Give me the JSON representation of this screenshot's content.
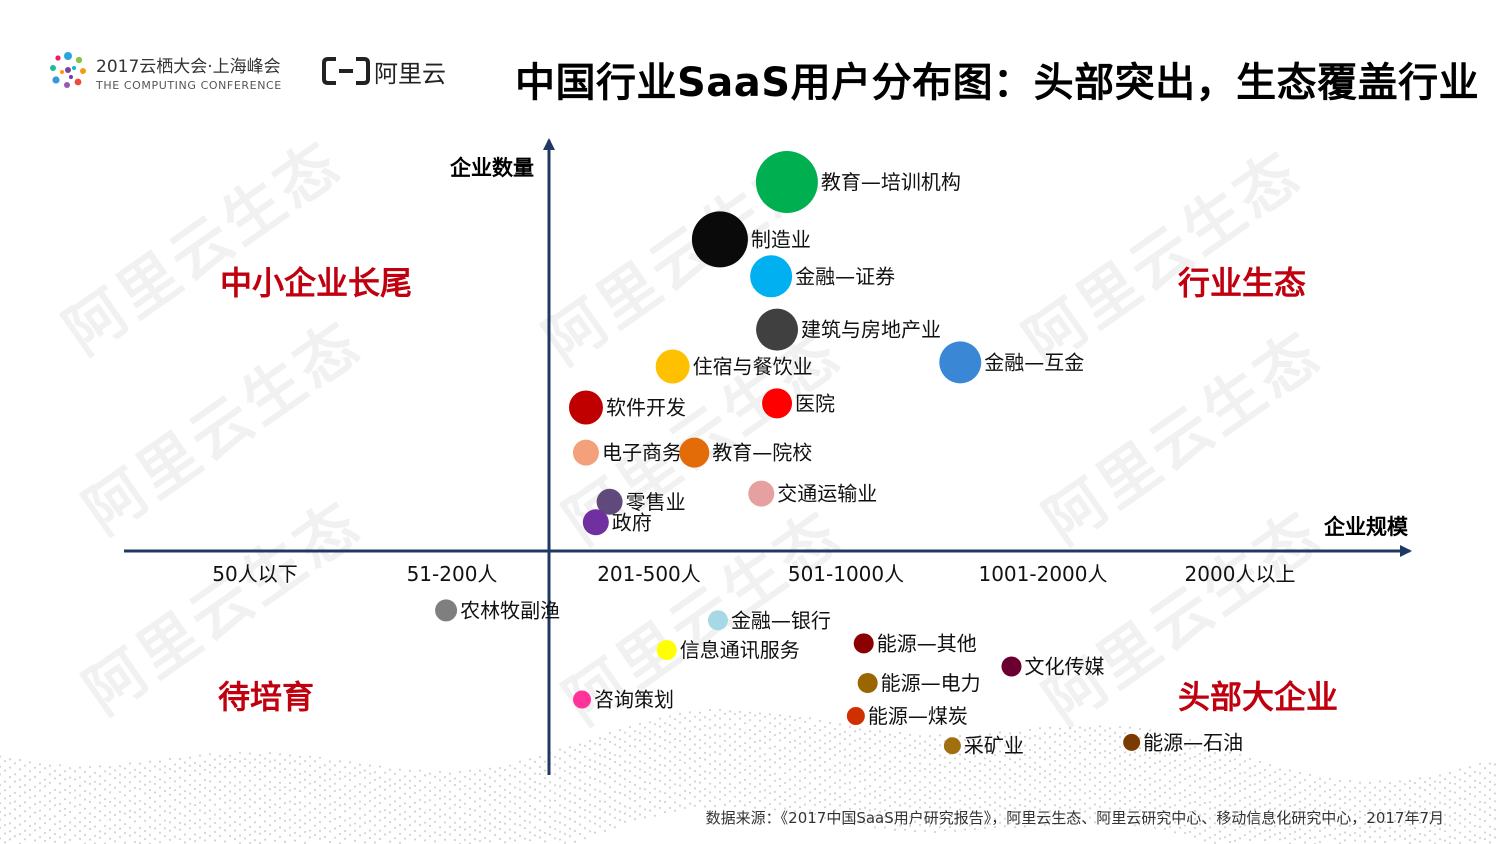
{
  "header": {
    "conference_name": "2017云栖大会·上海峰会",
    "conference_sub": "THE COMPUTING CONFERENCE",
    "brand_name": "阿里云"
  },
  "title": "中国行业SaaS用户分布图：头部突出，生态覆盖行业",
  "watermark": "阿里云生态",
  "quadrants": {
    "top_left": "中小企业长尾",
    "top_right": "行业生态",
    "bottom_left": "待培育",
    "bottom_right": "头部大企业"
  },
  "source": "数据来源：《2017中国SaaS用户研究报告》，阿里云生态、阿里云研究中心、移动信息化研究中心，2017年7月",
  "chart_data": {
    "type": "scatter",
    "ylabel": "企业数量",
    "xlabel": "企业规模",
    "x_categories": [
      "50人以下",
      "51-200人",
      "201-500人",
      "501-1000人",
      "1001-2000人",
      "2000人以上"
    ],
    "points": [
      {
        "label": "教育—培训机构",
        "x": 2.7,
        "y": 0.9,
        "size": 62,
        "color": "#00b050"
      },
      {
        "label": "制造业",
        "x": 2.36,
        "y": 0.76,
        "size": 56,
        "color": "#0a0a0a"
      },
      {
        "label": "金融—证券",
        "x": 2.62,
        "y": 0.67,
        "size": 42,
        "color": "#00b0f0"
      },
      {
        "label": "建筑与房地产业",
        "x": 2.65,
        "y": 0.54,
        "size": 42,
        "color": "#404040"
      },
      {
        "label": "金融—互金",
        "x": 3.58,
        "y": 0.46,
        "size": 42,
        "color": "#3a87d6"
      },
      {
        "label": "住宿与餐饮业",
        "x": 2.12,
        "y": 0.45,
        "size": 34,
        "color": "#ffc000"
      },
      {
        "label": "医院",
        "x": 2.65,
        "y": 0.36,
        "size": 30,
        "color": "#ff0000"
      },
      {
        "label": "软件开发",
        "x": 1.68,
        "y": 0.35,
        "size": 34,
        "color": "#c00000"
      },
      {
        "label": "电子商务",
        "x": 1.68,
        "y": 0.24,
        "size": 26,
        "color": "#f4a07a"
      },
      {
        "label": "教育—院校",
        "x": 2.23,
        "y": 0.24,
        "size": 30,
        "color": "#e36c09"
      },
      {
        "label": "交通运输业",
        "x": 2.57,
        "y": 0.14,
        "size": 26,
        "color": "#e6a0a0"
      },
      {
        "label": "零售业",
        "x": 1.8,
        "y": 0.12,
        "size": 26,
        "color": "#604a7b"
      },
      {
        "label": "政府",
        "x": 1.73,
        "y": 0.07,
        "size": 26,
        "color": "#7030a0"
      },
      {
        "label": "农林牧副渔",
        "x": 0.97,
        "y": -0.18,
        "size": 22,
        "color": "#7f7f7f"
      },
      {
        "label": "金融—银行",
        "x": 2.35,
        "y": -0.21,
        "size": 20,
        "color": "#a6d8e6"
      },
      {
        "label": "信息通讯服务",
        "x": 2.09,
        "y": -0.3,
        "size": 20,
        "color": "#ffff00"
      },
      {
        "label": "能源—其他",
        "x": 3.09,
        "y": -0.28,
        "size": 20,
        "color": "#8b0000"
      },
      {
        "label": "文化传媒",
        "x": 3.84,
        "y": -0.35,
        "size": 20,
        "color": "#6b0030"
      },
      {
        "label": "能源—电力",
        "x": 3.11,
        "y": -0.4,
        "size": 20,
        "color": "#996600"
      },
      {
        "label": "咨询策划",
        "x": 1.66,
        "y": -0.45,
        "size": 18,
        "color": "#ff3399"
      },
      {
        "label": "能源—煤炭",
        "x": 3.05,
        "y": -0.5,
        "size": 18,
        "color": "#d03000"
      },
      {
        "label": "采矿业",
        "x": 3.54,
        "y": -0.59,
        "size": 17,
        "color": "#a07010"
      },
      {
        "label": "能源—石油",
        "x": 4.45,
        "y": -0.58,
        "size": 17,
        "color": "#7a3a00"
      }
    ]
  }
}
